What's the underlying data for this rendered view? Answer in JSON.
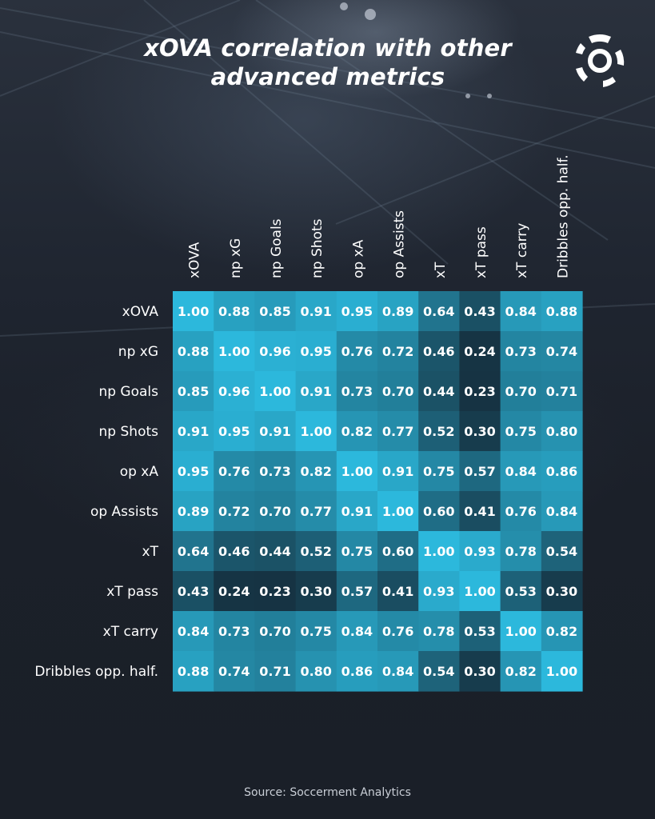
{
  "header": {
    "title_line1": "xOVA correlation with other",
    "title_line2": "advanced metrics"
  },
  "footer": {
    "source": "Source: Soccerment Analytics"
  },
  "colors": {
    "low": "#15303f",
    "high": "#2cb8dc",
    "text": "#ffffff"
  },
  "logo": {
    "icon": "soccerment-ball-logo-icon"
  },
  "chart_data": {
    "type": "heatmap",
    "title": "xOVA correlation with other advanced metrics",
    "x_labels": [
      "xOVA",
      "np xG",
      "np Goals",
      "np Shots",
      "op xA",
      "op Assists",
      "xT",
      "xT pass",
      "xT carry",
      "Dribbles opp. half."
    ],
    "y_labels": [
      "xOVA",
      "np xG",
      "np Goals",
      "np Shots",
      "op xA",
      "op Assists",
      "xT",
      "xT pass",
      "xT carry",
      "Dribbles opp. half."
    ],
    "values": [
      [
        1.0,
        0.88,
        0.85,
        0.91,
        0.95,
        0.89,
        0.64,
        0.43,
        0.84,
        0.88
      ],
      [
        0.88,
        1.0,
        0.96,
        0.95,
        0.76,
        0.72,
        0.46,
        0.24,
        0.73,
        0.74
      ],
      [
        0.85,
        0.96,
        1.0,
        0.91,
        0.73,
        0.7,
        0.44,
        0.23,
        0.7,
        0.71
      ],
      [
        0.91,
        0.95,
        0.91,
        1.0,
        0.82,
        0.77,
        0.52,
        0.3,
        0.75,
        0.8
      ],
      [
        0.95,
        0.76,
        0.73,
        0.82,
        1.0,
        0.91,
        0.75,
        0.57,
        0.84,
        0.86
      ],
      [
        0.89,
        0.72,
        0.7,
        0.77,
        0.91,
        1.0,
        0.6,
        0.41,
        0.76,
        0.84
      ],
      [
        0.64,
        0.46,
        0.44,
        0.52,
        0.75,
        0.6,
        1.0,
        0.93,
        0.78,
        0.54
      ],
      [
        0.43,
        0.24,
        0.23,
        0.3,
        0.57,
        0.41,
        0.93,
        1.0,
        0.53,
        0.3
      ],
      [
        0.84,
        0.73,
        0.7,
        0.75,
        0.84,
        0.76,
        0.78,
        0.53,
        1.0,
        0.82
      ],
      [
        0.88,
        0.74,
        0.71,
        0.8,
        0.86,
        0.84,
        0.54,
        0.3,
        0.82,
        1.0
      ]
    ],
    "value_range": [
      0.2,
      1.0
    ],
    "value_format": "2 decimals",
    "x_label_orientation": "vertical",
    "legend": "none"
  }
}
